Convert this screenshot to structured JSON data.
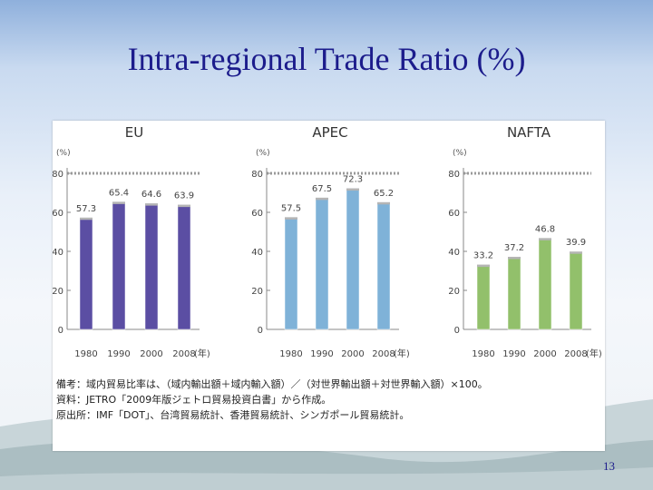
{
  "slide": {
    "title": "Intra-regional Trade Ratio (%)",
    "page_number": "13"
  },
  "chart_data": [
    {
      "type": "bar",
      "title": "EU",
      "unit_label": "(%)",
      "year_unit": "(年)",
      "categories": [
        "1980",
        "1990",
        "2000",
        "2008"
      ],
      "values": [
        57.3,
        65.4,
        64.6,
        63.9
      ],
      "value_labels": [
        "57.3",
        "65.4",
        "64.6",
        "63.9"
      ],
      "ylim": [
        0,
        80
      ],
      "yticks": [
        "0",
        "20",
        "40",
        "60",
        "80"
      ],
      "color": "#5b4ea3",
      "grid": false
    },
    {
      "type": "bar",
      "title": "APEC",
      "unit_label": "(%)",
      "year_unit": "(年)",
      "categories": [
        "1980",
        "1990",
        "2000",
        "2008"
      ],
      "values": [
        57.5,
        67.5,
        72.3,
        65.2
      ],
      "value_labels": [
        "57.5",
        "67.5",
        "72.3",
        "65.2"
      ],
      "ylim": [
        0,
        80
      ],
      "yticks": [
        "0",
        "20",
        "40",
        "60",
        "80"
      ],
      "color": "#7fb2d8",
      "grid": false
    },
    {
      "type": "bar",
      "title": "NAFTA",
      "unit_label": "(%)",
      "year_unit": "(年)",
      "categories": [
        "1980",
        "1990",
        "2000",
        "2008"
      ],
      "values": [
        33.2,
        37.2,
        46.8,
        39.9
      ],
      "value_labels": [
        "33.2",
        "37.2",
        "46.8",
        "39.9"
      ],
      "ylim": [
        0,
        80
      ],
      "yticks": [
        "0",
        "20",
        "40",
        "60",
        "80"
      ],
      "color": "#92c06b",
      "grid": false
    }
  ],
  "notes": {
    "line1": "備考：域内貿易比率は、（域内輸出額＋域内輸入額）／（対世界輸出額＋対世界輸入額）×100。",
    "line2": "資料：JETRO「2009年版ジェトロ貿易投資白書」から作成。",
    "line3": "原出所：IMF「DOT」、台湾貿易統計、香港貿易統計、シンガポール貿易統計。"
  }
}
